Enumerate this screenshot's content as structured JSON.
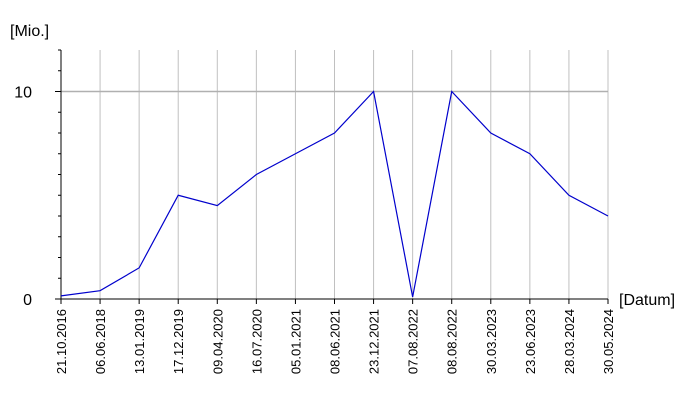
{
  "chart_data": {
    "type": "line",
    "y_label": "[Mio.]",
    "x_label": "[Datum]",
    "categories": [
      "21.10.2016",
      "06.06.2018",
      "13.01.2019",
      "17.12.2019",
      "09.04.2020",
      "16.07.2020",
      "05.01.2021",
      "08.06.2021",
      "23.12.2021",
      "07.08.2022",
      "08.08.2022",
      "30.03.2023",
      "23.06.2023",
      "28.03.2024",
      "30.05.2024"
    ],
    "series": [
      {
        "color": "#0000cc",
        "values": [
          0.15,
          0.4,
          1.5,
          5.0,
          4.5,
          6.0,
          7.0,
          8.0,
          10,
          0.1,
          10,
          8.0,
          7.0,
          5.0,
          4.0
        ]
      }
    ],
    "ylim": [
      0,
      12
    ],
    "yticks": [
      0,
      10
    ],
    "minor_yticks": [
      1,
      2,
      3,
      4,
      5,
      6,
      7,
      8,
      9,
      11,
      12
    ],
    "grid": true
  }
}
